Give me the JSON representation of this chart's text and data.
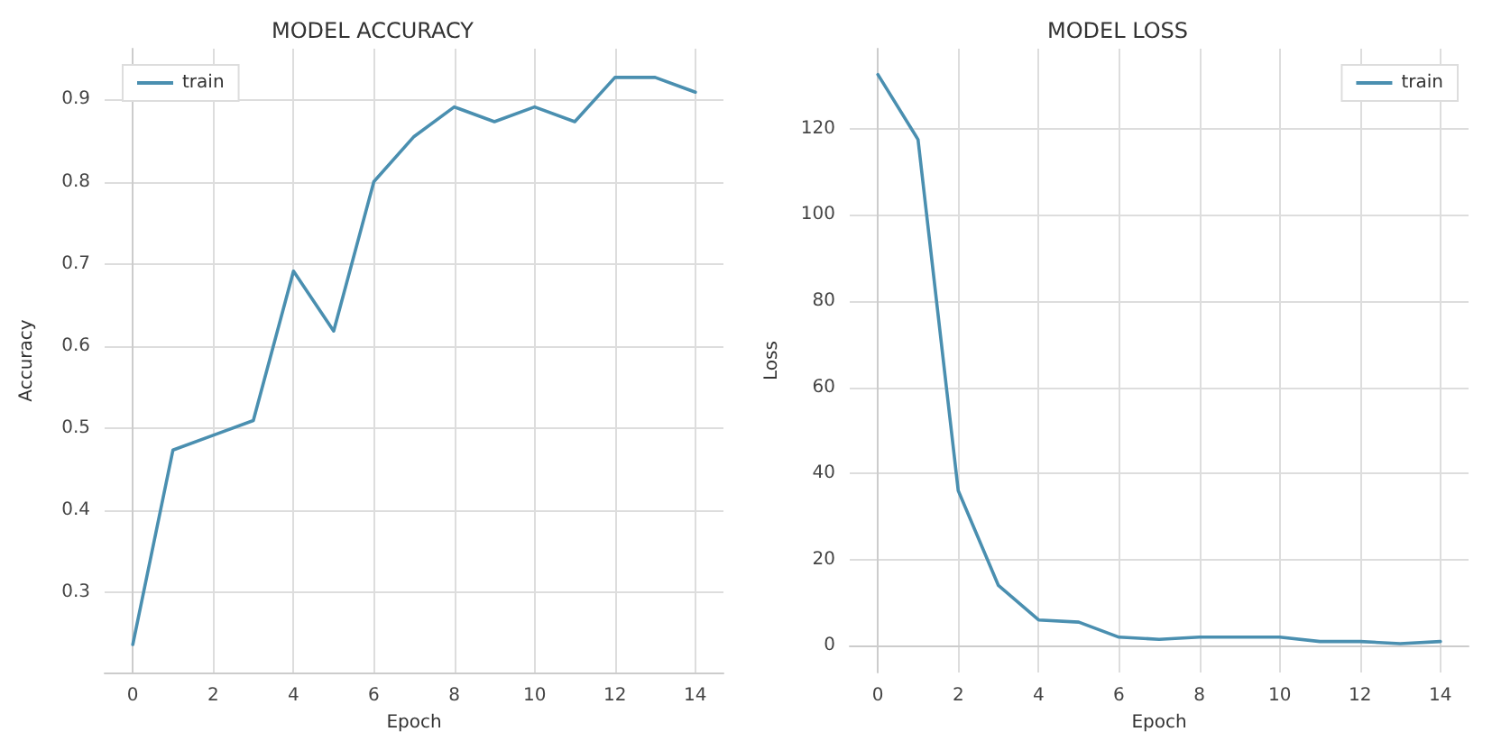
{
  "chart_data": [
    {
      "type": "line",
      "title": "MODEL ACCURACY",
      "xlabel": "Epoch",
      "ylabel": "Accuracy",
      "x": [
        0,
        1,
        2,
        3,
        4,
        5,
        6,
        7,
        8,
        9,
        10,
        11,
        12,
        13,
        14
      ],
      "series": [
        {
          "name": "train",
          "color": "#4a8fb0",
          "values": [
            0.236,
            0.473,
            0.491,
            0.509,
            0.691,
            0.618,
            0.8,
            0.855,
            0.891,
            0.873,
            0.891,
            0.873,
            0.927,
            0.927,
            0.909
          ]
        }
      ],
      "xlim": [
        -0.7,
        14.7
      ],
      "ylim": [
        0.202,
        0.962
      ],
      "xticks": [
        0,
        2,
        4,
        6,
        8,
        10,
        12,
        14
      ],
      "yticks": [
        0.3,
        0.4,
        0.5,
        0.6,
        0.7,
        0.8,
        0.9
      ],
      "grid": true,
      "legend": "top left"
    },
    {
      "type": "line",
      "title": "MODEL LOSS",
      "xlabel": "Epoch",
      "ylabel": "Loss",
      "x": [
        0,
        1,
        2,
        3,
        4,
        5,
        6,
        7,
        8,
        9,
        10,
        11,
        12,
        13,
        14
      ],
      "series": [
        {
          "name": "train",
          "color": "#4a8fb0",
          "values": [
            132.6,
            117.5,
            36,
            14,
            6,
            5.5,
            2,
            1.5,
            2,
            2,
            2,
            1,
            1,
            0.5,
            1
          ]
        }
      ],
      "xlim": [
        -0.7,
        14.7
      ],
      "ylim": [
        -6.2,
        138.6
      ],
      "xticks": [
        0,
        2,
        4,
        6,
        8,
        10,
        12,
        14
      ],
      "yticks": [
        0,
        20,
        40,
        60,
        80,
        100,
        120
      ],
      "grid": true,
      "legend": "top right"
    }
  ]
}
